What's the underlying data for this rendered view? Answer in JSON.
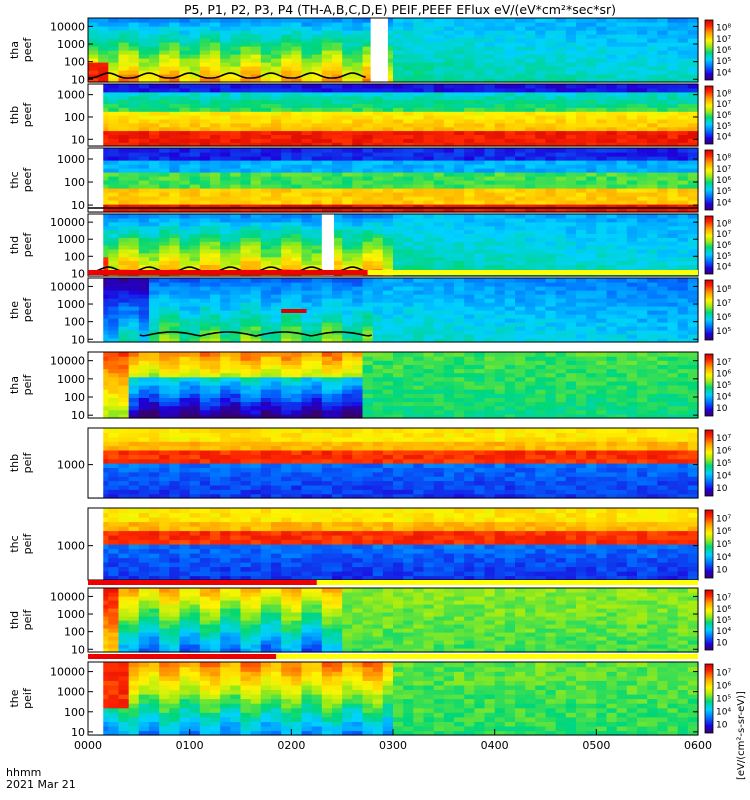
{
  "chart_data": {
    "type": "heatmap",
    "title": "P5, P1, P2, P3, P4 (TH-A,B,C,D,E) PEIF,PEEF EFlux eV/(eV*cm²*sec*sr)",
    "x_ticks": [
      "0000",
      "0100",
      "0200",
      "0300",
      "0400",
      "0500",
      "0600"
    ],
    "x_range_hours": [
      0,
      6
    ],
    "x_label_line1": "hhmm",
    "x_label_line2": "2021 Mar 21",
    "colorbar_unit_label": "[eV/(cm²-s-sr-eV)]",
    "ylog": true,
    "panels": [
      {
        "line1": "tha",
        "line2": "peef",
        "y_ticks": [
          "10",
          "100",
          "1000",
          "10000"
        ],
        "ylim": [
          7,
          30000
        ],
        "cb_ticks": [
          "10⁴",
          "10⁵",
          "10⁶",
          "10⁷",
          "10⁸"
        ],
        "profile": "tha_e",
        "gap": [
          2.78,
          2.95
        ],
        "curve": "tha",
        "bar": null
      },
      {
        "line1": "thb",
        "line2": "peef",
        "y_ticks": [
          "10",
          "100",
          "1000"
        ],
        "ylim": [
          5,
          3000
        ],
        "cb_ticks": [
          "10⁴",
          "10⁵",
          "10⁶",
          "10⁷",
          "10⁸"
        ],
        "profile": "thb_e",
        "gap": null,
        "curve": null,
        "bar": null
      },
      {
        "line1": "thc",
        "line2": "peef",
        "y_ticks": [
          "10",
          "100",
          "1000"
        ],
        "ylim": [
          5,
          3000
        ],
        "cb_ticks": [
          "10⁴",
          "10⁵",
          "10⁶",
          "10⁷",
          "10⁸"
        ],
        "profile": "thc_e",
        "gap": null,
        "curve": "thc",
        "bar": null
      },
      {
        "line1": "thd",
        "line2": "peef",
        "y_ticks": [
          "10",
          "100",
          "1000",
          "10000"
        ],
        "ylim": [
          7,
          30000
        ],
        "cb_ticks": [
          "10⁴",
          "10⁵",
          "10⁶",
          "10⁷",
          "10⁸"
        ],
        "profile": "tha_e",
        "gap": [
          2.3,
          2.42
        ],
        "curve": "tha",
        "bar": null
      },
      {
        "line1": "the",
        "line2": "peef",
        "y_ticks": [
          "10",
          "100",
          "1000",
          "10000"
        ],
        "ylim": [
          7,
          30000
        ],
        "cb_ticks": [
          "10⁵",
          "10⁶",
          "10⁷",
          "10⁸"
        ],
        "profile": "the_e",
        "gap": null,
        "curve": "the",
        "bar": {
          "start": 0,
          "end": 2.75
        }
      },
      {
        "line1": "tha",
        "line2": "peif",
        "y_ticks": [
          "10",
          "100",
          "1000",
          "10000"
        ],
        "ylim": [
          7,
          30000
        ],
        "cb_ticks": [
          "10⁳",
          "10⁴",
          "10⁵",
          "10⁶",
          "10⁷"
        ],
        "profile": "ion",
        "gap": null,
        "curve": null,
        "bar": null
      },
      {
        "line1": "thb",
        "line2": "peif",
        "y_ticks": [
          "1000"
        ],
        "ylim": [
          150,
          8000
        ],
        "cb_ticks": [
          "10⁳",
          "10⁴",
          "10⁵",
          "10⁶",
          "10⁷"
        ],
        "profile": "band",
        "gap": null,
        "curve": null,
        "bar": null
      },
      {
        "line1": "thc",
        "line2": "peif",
        "y_ticks": [
          "1000"
        ],
        "ylim": [
          150,
          8000
        ],
        "cb_ticks": [
          "10⁳",
          "10⁴",
          "10⁵",
          "10⁶",
          "10⁷"
        ],
        "profile": "band",
        "gap": null,
        "curve": null,
        "bar": null
      },
      {
        "line1": "thd",
        "line2": "peif",
        "y_ticks": [
          "10",
          "100",
          "1000",
          "10000"
        ],
        "ylim": [
          7,
          30000
        ],
        "cb_ticks": [
          "10⁳",
          "10⁴",
          "10⁵",
          "10⁶",
          "10⁷"
        ],
        "profile": "ion2",
        "gap": null,
        "curve": null,
        "bar": {
          "start": 0,
          "end": 2.25
        }
      },
      {
        "line1": "the",
        "line2": "peif",
        "y_ticks": [
          "10",
          "100",
          "1000",
          "10000"
        ],
        "ylim": [
          7,
          30000
        ],
        "cb_ticks": [
          "10⁳",
          "10⁴",
          "10⁵",
          "10⁶",
          "10⁷"
        ],
        "profile": "ion3",
        "gap": null,
        "curve": null,
        "bar": {
          "start": 0,
          "end": 1.85
        }
      }
    ]
  }
}
